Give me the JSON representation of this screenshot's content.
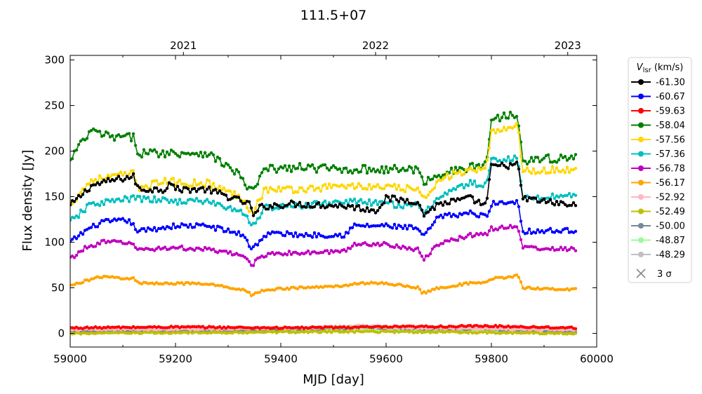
{
  "chart_data": {
    "type": "line",
    "title": "111.5+07",
    "xlabel": "MJD [day]",
    "ylabel": "Flux density [Jy]",
    "xlim": [
      59000,
      60000
    ],
    "ylim": [
      -15,
      305
    ],
    "xticks": [
      59000,
      59200,
      59400,
      59600,
      59800,
      60000
    ],
    "yticks": [
      0,
      50,
      100,
      150,
      200,
      250,
      300
    ],
    "top_axis": {
      "ticks": [
        {
          "mjd": 59215,
          "label": "2021"
        },
        {
          "mjd": 59580,
          "label": "2022"
        },
        {
          "mjd": 59945,
          "label": "2023"
        }
      ]
    },
    "grid": false,
    "legend": {
      "placement": "outside-right",
      "title_main": "V",
      "title_sub": "lsr",
      "title_unit": " (km/s)",
      "sigma_label": "3 σ"
    },
    "x_start": 59000,
    "x_step": 4,
    "series": [
      {
        "name": "-61.30",
        "color": "#000000",
        "anchors": [
          [
            59000,
            140
          ],
          [
            59040,
            162
          ],
          [
            59080,
            168
          ],
          [
            59120,
            172
          ],
          [
            59130,
            158
          ],
          [
            59180,
            158
          ],
          [
            59190,
            168
          ],
          [
            59200,
            158
          ],
          [
            59260,
            158
          ],
          [
            59290,
            152
          ],
          [
            59340,
            142
          ],
          [
            59350,
            128
          ],
          [
            59360,
            138
          ],
          [
            59380,
            140
          ],
          [
            59420,
            142
          ],
          [
            59520,
            140
          ],
          [
            59580,
            135
          ],
          [
            59600,
            148
          ],
          [
            59660,
            145
          ],
          [
            59670,
            130
          ],
          [
            59700,
            142
          ],
          [
            59760,
            148
          ],
          [
            59790,
            140
          ],
          [
            59800,
            183
          ],
          [
            59850,
            185
          ],
          [
            59860,
            148
          ],
          [
            59960,
            140
          ]
        ]
      },
      {
        "name": "-60.67",
        "color": "#0000ff",
        "anchors": [
          [
            59000,
            100
          ],
          [
            59030,
            113
          ],
          [
            59060,
            122
          ],
          [
            59110,
            124
          ],
          [
            59130,
            112
          ],
          [
            59200,
            118
          ],
          [
            59260,
            118
          ],
          [
            59330,
            108
          ],
          [
            59345,
            92
          ],
          [
            59365,
            105
          ],
          [
            59380,
            110
          ],
          [
            59440,
            108
          ],
          [
            59520,
            108
          ],
          [
            59540,
            118
          ],
          [
            59600,
            118
          ],
          [
            59660,
            115
          ],
          [
            59670,
            105
          ],
          [
            59700,
            128
          ],
          [
            59760,
            132
          ],
          [
            59790,
            128
          ],
          [
            59800,
            142
          ],
          [
            59850,
            145
          ],
          [
            59860,
            112
          ],
          [
            59960,
            113
          ]
        ]
      },
      {
        "name": "-59.63",
        "color": "#ff0000",
        "anchors": [
          [
            59000,
            6
          ],
          [
            59200,
            7
          ],
          [
            59400,
            6
          ],
          [
            59600,
            7
          ],
          [
            59800,
            8
          ],
          [
            59960,
            6
          ]
        ]
      },
      {
        "name": "-58.04",
        "color": "#008000",
        "anchors": [
          [
            59000,
            188
          ],
          [
            59010,
            200
          ],
          [
            59040,
            222
          ],
          [
            59080,
            215
          ],
          [
            59120,
            215
          ],
          [
            59130,
            198
          ],
          [
            59200,
            198
          ],
          [
            59260,
            198
          ],
          [
            59320,
            175
          ],
          [
            59330,
            165
          ],
          [
            59345,
            155
          ],
          [
            59370,
            180
          ],
          [
            59440,
            182
          ],
          [
            59520,
            180
          ],
          [
            59600,
            180
          ],
          [
            59660,
            180
          ],
          [
            59670,
            165
          ],
          [
            59700,
            175
          ],
          [
            59760,
            182
          ],
          [
            59790,
            185
          ],
          [
            59800,
            235
          ],
          [
            59850,
            242
          ],
          [
            59860,
            190
          ],
          [
            59960,
            193
          ]
        ]
      },
      {
        "name": "-57.56",
        "color": "#ffd700",
        "anchors": [
          [
            59000,
            142
          ],
          [
            59040,
            168
          ],
          [
            59080,
            172
          ],
          [
            59120,
            175
          ],
          [
            59130,
            160
          ],
          [
            59190,
            168
          ],
          [
            59200,
            165
          ],
          [
            59260,
            165
          ],
          [
            59330,
            148
          ],
          [
            59345,
            132
          ],
          [
            59370,
            158
          ],
          [
            59440,
            158
          ],
          [
            59520,
            162
          ],
          [
            59600,
            160
          ],
          [
            59660,
            158
          ],
          [
            59670,
            145
          ],
          [
            59700,
            170
          ],
          [
            59760,
            178
          ],
          [
            59790,
            178
          ],
          [
            59800,
            222
          ],
          [
            59850,
            228
          ],
          [
            59860,
            178
          ],
          [
            59960,
            180
          ]
        ]
      },
      {
        "name": "-57.36",
        "color": "#00bfbf",
        "anchors": [
          [
            59000,
            122
          ],
          [
            59040,
            142
          ],
          [
            59080,
            145
          ],
          [
            59120,
            148
          ],
          [
            59200,
            145
          ],
          [
            59260,
            145
          ],
          [
            59330,
            132
          ],
          [
            59345,
            118
          ],
          [
            59370,
            138
          ],
          [
            59440,
            140
          ],
          [
            59520,
            145
          ],
          [
            59600,
            142
          ],
          [
            59660,
            140
          ],
          [
            59670,
            130
          ],
          [
            59700,
            150
          ],
          [
            59760,
            165
          ],
          [
            59790,
            162
          ],
          [
            59800,
            190
          ],
          [
            59850,
            192
          ],
          [
            59860,
            148
          ],
          [
            59960,
            152
          ]
        ]
      },
      {
        "name": "-56.78",
        "color": "#bf00bf",
        "anchors": [
          [
            59000,
            82
          ],
          [
            59030,
            94
          ],
          [
            59060,
            100
          ],
          [
            59110,
            100
          ],
          [
            59130,
            92
          ],
          [
            59200,
            94
          ],
          [
            59260,
            92
          ],
          [
            59330,
            85
          ],
          [
            59345,
            75
          ],
          [
            59365,
            85
          ],
          [
            59380,
            88
          ],
          [
            59440,
            88
          ],
          [
            59520,
            90
          ],
          [
            59540,
            98
          ],
          [
            59600,
            98
          ],
          [
            59660,
            92
          ],
          [
            59670,
            80
          ],
          [
            59700,
            98
          ],
          [
            59760,
            108
          ],
          [
            59790,
            108
          ],
          [
            59800,
            115
          ],
          [
            59850,
            118
          ],
          [
            59860,
            94
          ],
          [
            59960,
            92
          ]
        ]
      },
      {
        "name": "-56.17",
        "color": "#ffa500",
        "anchors": [
          [
            59000,
            52
          ],
          [
            59030,
            58
          ],
          [
            59060,
            62
          ],
          [
            59120,
            60
          ],
          [
            59130,
            55
          ],
          [
            59200,
            55
          ],
          [
            59260,
            54
          ],
          [
            59330,
            48
          ],
          [
            59345,
            42
          ],
          [
            59370,
            48
          ],
          [
            59440,
            50
          ],
          [
            59520,
            52
          ],
          [
            59540,
            55
          ],
          [
            59600,
            55
          ],
          [
            59660,
            50
          ],
          [
            59670,
            44
          ],
          [
            59700,
            50
          ],
          [
            59760,
            55
          ],
          [
            59790,
            55
          ],
          [
            59800,
            60
          ],
          [
            59850,
            63
          ],
          [
            59860,
            50
          ],
          [
            59960,
            48
          ]
        ]
      },
      {
        "name": "-52.92",
        "color": "#ffb6c1",
        "anchors": [
          [
            59000,
            4
          ],
          [
            59300,
            5
          ],
          [
            59550,
            7
          ],
          [
            59800,
            5
          ],
          [
            59960,
            4
          ]
        ]
      },
      {
        "name": "-52.49",
        "color": "#bfbf00",
        "anchors": [
          [
            59000,
            0
          ],
          [
            59300,
            1
          ],
          [
            59550,
            2
          ],
          [
            59800,
            1
          ],
          [
            59960,
            0
          ]
        ]
      },
      {
        "name": "-50.00",
        "color": "#778899",
        "anchors": [
          [
            59000,
            2
          ],
          [
            59300,
            3
          ],
          [
            59550,
            6
          ],
          [
            59800,
            4
          ],
          [
            59960,
            2
          ]
        ]
      },
      {
        "name": "-48.87",
        "color": "#98fb98",
        "anchors": [
          [
            59000,
            1
          ],
          [
            59300,
            2
          ],
          [
            59550,
            4
          ],
          [
            59800,
            2
          ],
          [
            59960,
            1
          ]
        ]
      },
      {
        "name": "-48.29",
        "color": "#c0c0c0",
        "anchors": [
          [
            59000,
            3
          ],
          [
            59300,
            4
          ],
          [
            59550,
            8
          ],
          [
            59800,
            5
          ],
          [
            59960,
            3
          ]
        ]
      }
    ]
  }
}
